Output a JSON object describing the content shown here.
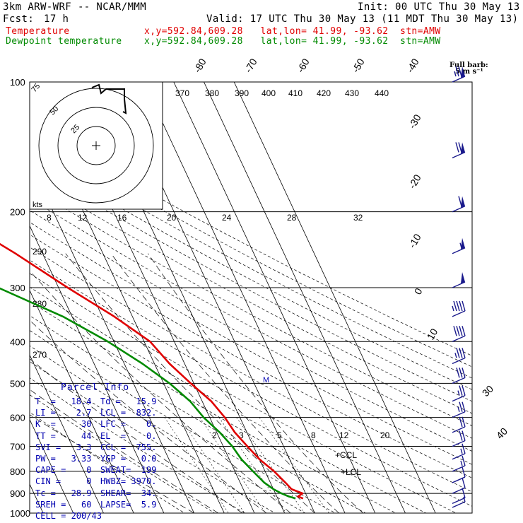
{
  "header": {
    "model": "3km ARW-WRF -- NCAR/MMM",
    "init": "Init: 00 UTC Thu 30 May 13",
    "fcst_label": "Fcst:",
    "fcst_value": "17 h",
    "valid": "Valid: 17 UTC Thu 30 May 13 (11 MDT Thu 30 May 13)",
    "temp_label": "Temperature",
    "temp_loc": "x,y=592.84,609.28   lat,lon= 41.99, -93.62  stn=AMW",
    "dew_label": "Dewpoint temperature",
    "dew_loc": "x,y=592.84,609.28   lat,lon= 41.99, -93.62  stn=AMW"
  },
  "colors": {
    "temperature": "#e00000",
    "dewpoint": "#008a00",
    "parcel_text": "#0000b0",
    "barbs": "#1a1a8c"
  },
  "barb_legend": {
    "line1": "Full barb:",
    "line2": "5 m s⁻¹"
  },
  "hodograph": {
    "ring_labels": [
      "75",
      "50",
      "25"
    ],
    "units": "kts"
  },
  "parcel_info": {
    "title": "Parcel Info",
    "rows": [
      {
        "left": "T  =   18.4",
        "right": "Td =   15.9"
      },
      {
        "left": "LI =    2.7",
        "right": "LCL =  832."
      },
      {
        "left": "K  =     30",
        "right": "LFC =    0."
      },
      {
        "left": "TT =     44",
        "right": "EL  =    0."
      },
      {
        "left": "SVI =   3.3",
        "right": "CCL =  755."
      },
      {
        "left": "PW =   3.33",
        "right": "YGP =   0.0"
      },
      {
        "left": "CAPE =    0",
        "right": "SWEAT=  199"
      },
      {
        "left": "CIN =     0",
        "right": "HWBZ= 3970."
      },
      {
        "left": "Tc =   28.9",
        "right": "SHEAR=  34."
      },
      {
        "left": "SREH =   60",
        "right": "LAPSE=  5.9"
      },
      {
        "left": "CELL = 200/43",
        "right": ""
      }
    ]
  },
  "chart_data": {
    "type": "skew-t",
    "pressure_axis_labels": [
      "100",
      "200",
      "300",
      "400",
      "500",
      "600",
      "700",
      "800",
      "900",
      "1000"
    ],
    "pressure_levels": [
      100,
      200,
      300,
      400,
      500,
      600,
      700,
      800,
      900,
      1000
    ],
    "isotherm_labels": [
      "-80",
      "-70",
      "-60",
      "-50",
      "-40",
      "-30",
      "-20",
      "-10",
      "0",
      "10",
      "20",
      "30",
      "40"
    ],
    "theta_e_labels": [
      "370",
      "380",
      "390",
      "400",
      "410",
      "420",
      "430",
      "440"
    ],
    "mixing_ratio_labels": [
      "2",
      "3",
      "5",
      "8",
      "12",
      "20"
    ],
    "dry_adiabat_labels": [
      "290",
      "280",
      "270"
    ],
    "hodo_speed_labels": [
      "8",
      "12",
      "16",
      "20",
      "24",
      "28",
      "32"
    ],
    "markers": [
      "+CCL",
      "+LCL",
      "M"
    ],
    "series": [
      {
        "name": "Temperature",
        "pressure": [
          100,
          130,
          150,
          170,
          200,
          215,
          250,
          300,
          350,
          400,
          450,
          500,
          550,
          600,
          650,
          700,
          750,
          800,
          850,
          880,
          900,
          915,
          925
        ],
        "temp_c": [
          -61,
          -63,
          -58,
          -55,
          -52,
          -50,
          -39,
          -27,
          -16,
          -8,
          -5,
          -1,
          3,
          5,
          6,
          8,
          10,
          13,
          15,
          16,
          19,
          17,
          18.4
        ]
      },
      {
        "name": "Dewpoint temperature",
        "pressure": [
          100,
          115,
          140,
          160,
          180,
          200,
          250,
          300,
          350,
          400,
          450,
          500,
          550,
          600,
          650,
          700,
          750,
          800,
          850,
          880,
          900,
          915,
          925
        ],
        "temp_c": [
          -63,
          -82,
          -83,
          -83,
          -82,
          -82,
          -70,
          -50,
          -33,
          -22,
          -14,
          -8,
          -4,
          -2,
          1,
          3,
          4,
          6,
          8,
          10,
          12,
          14,
          15.9
        ]
      }
    ],
    "wind_barbs": [
      {
        "p": 100,
        "knots": 75
      },
      {
        "p": 150,
        "knots": 70
      },
      {
        "p": 200,
        "knots": 60
      },
      {
        "p": 250,
        "knots": 55
      },
      {
        "p": 300,
        "knots": 50
      },
      {
        "p": 350,
        "knots": 45
      },
      {
        "p": 400,
        "knots": 40
      },
      {
        "p": 450,
        "knots": 35
      },
      {
        "p": 500,
        "knots": 30
      },
      {
        "p": 550,
        "knots": 25
      },
      {
        "p": 600,
        "knots": 25
      },
      {
        "p": 650,
        "knots": 20
      },
      {
        "p": 700,
        "knots": 20
      },
      {
        "p": 750,
        "knots": 15
      },
      {
        "p": 800,
        "knots": 15
      },
      {
        "p": 850,
        "knots": 10
      },
      {
        "p": 900,
        "knots": 10
      },
      {
        "p": 950,
        "knots": 10
      },
      {
        "p": 1000,
        "knots": 5
      }
    ]
  }
}
